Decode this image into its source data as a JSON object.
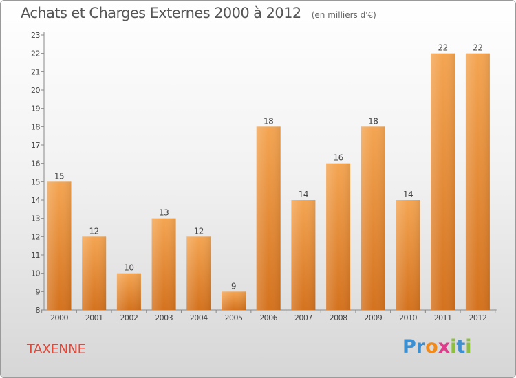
{
  "header": {
    "title": "Achats et Charges Externes 2000 à 2012",
    "unit": "(en milliers d'€)"
  },
  "footer": {
    "commune": "TAXENNE",
    "brand_letters": [
      "P",
      "r",
      "o",
      "x",
      "i",
      "t",
      "i"
    ],
    "brand_colors": [
      "#3c8fd0",
      "#3c8fd0",
      "#f08a1c",
      "#e03c8c",
      "#8dc03c",
      "#3c8fd0",
      "#8dc03c"
    ]
  },
  "colors": {
    "bar_light": "#f4a552",
    "bar_dark": "#d4721e",
    "axis": "#888888",
    "label": "#444444"
  },
  "chart_data": {
    "type": "bar",
    "categories": [
      "2000",
      "2001",
      "2002",
      "2003",
      "2004",
      "2005",
      "2006",
      "2007",
      "2008",
      "2009",
      "2010",
      "2011",
      "2012"
    ],
    "values": [
      15,
      12,
      10,
      13,
      12,
      9,
      18,
      14,
      16,
      18,
      14,
      22,
      22
    ],
    "data_labels": [
      "15",
      "12",
      "10",
      "13",
      "12",
      "9",
      "18",
      "14",
      "16",
      "18",
      "14",
      "22",
      "22"
    ],
    "ylim": [
      8,
      23
    ],
    "yticks": [
      8,
      9,
      10,
      11,
      12,
      13,
      14,
      15,
      16,
      17,
      18,
      19,
      20,
      21,
      22,
      23
    ],
    "grid": false,
    "legend": "none"
  }
}
